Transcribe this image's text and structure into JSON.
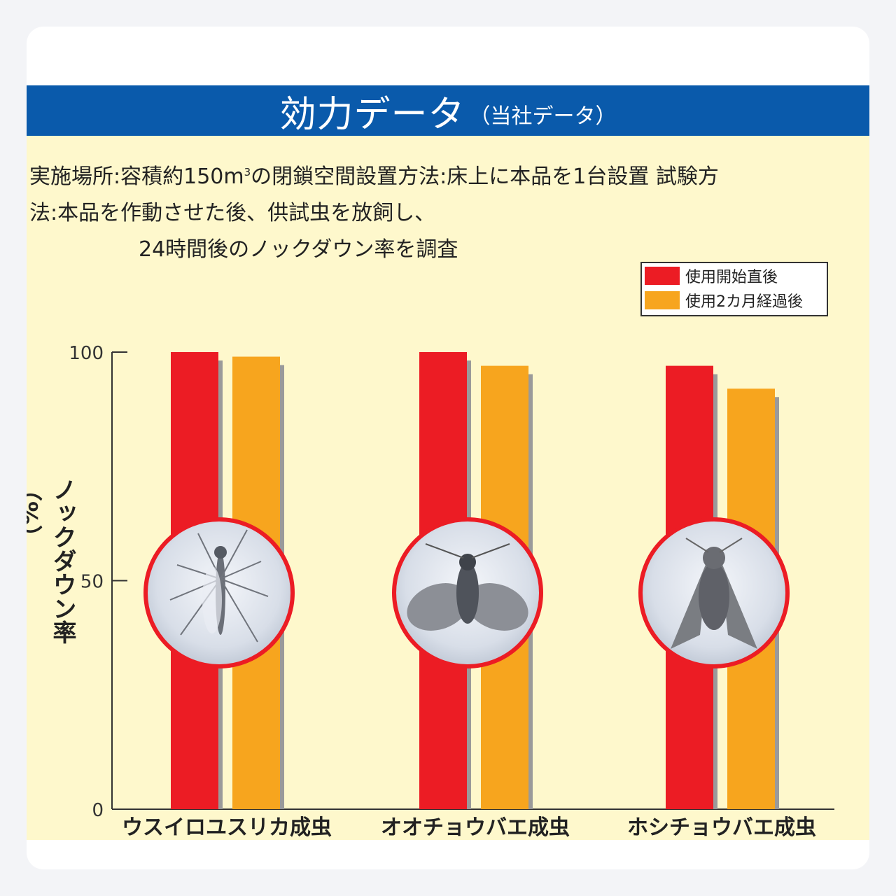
{
  "header": {
    "title": "効力データ",
    "subtitle": "（当社データ）"
  },
  "description": {
    "line1_a": "実施場所:容積約150m",
    "line1_sup": "3",
    "line1_b": "の閉鎖空間設置方法:床上に本品を1台設置 試験方",
    "line2": "法:本品を作動させた後、供試虫を放飼し、",
    "line3": "24時間後のノックダウン率を調査"
  },
  "colors": {
    "banner": "#0a5aab",
    "background": "#fef8cc",
    "series_1": "#ec1c24",
    "series_2": "#f7a51e",
    "shadow": "#9a9a9a"
  },
  "chart_data": {
    "type": "bar",
    "categories": [
      "ウスイロユスリカ成虫",
      "オオチョウバエ成虫",
      "ホシチョウバエ成虫"
    ],
    "series": [
      {
        "name": "使用開始直後",
        "values": [
          100,
          100,
          97
        ]
      },
      {
        "name": "使用2カ月経過後",
        "values": [
          99,
          97,
          92
        ]
      }
    ],
    "ylabel": "ノックダウン率（%）",
    "yticks": [
      0,
      50,
      100
    ],
    "ylim": [
      0,
      100
    ],
    "legend": "top-right",
    "images": [
      "mosquito-photo",
      "moth-fly-photo",
      "spotted-moth-fly-photo"
    ]
  }
}
